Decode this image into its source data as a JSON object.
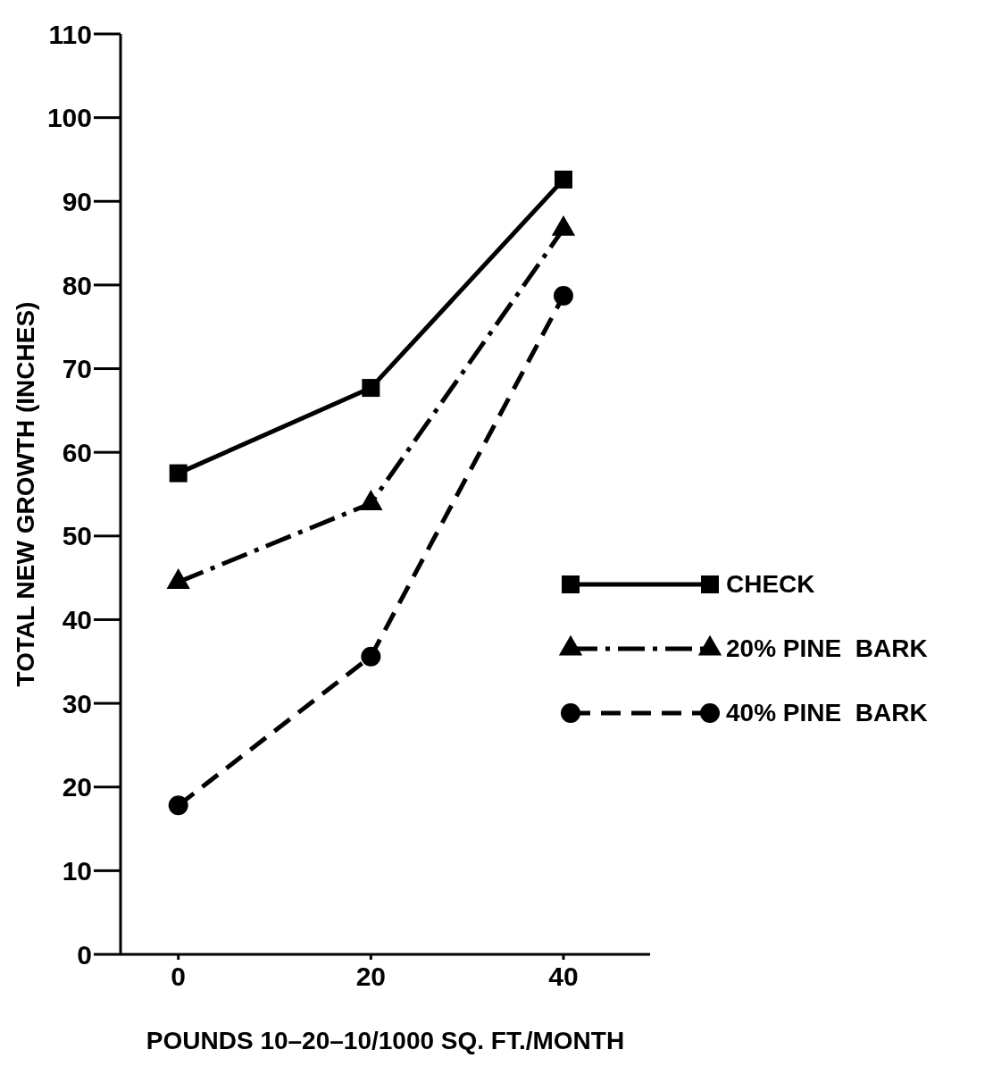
{
  "chart_data": {
    "type": "line",
    "xlabel": "POUNDS 10–20–10/1000 SQ. FT./MONTH",
    "ylabel": "TOTAL NEW GROWTH (INCHES)",
    "x": [
      0,
      20,
      40
    ],
    "xlim": [
      -6,
      49
    ],
    "xticks": [
      0,
      20,
      40
    ],
    "ylim": [
      0,
      110
    ],
    "yticks": [
      0,
      10,
      20,
      30,
      40,
      50,
      60,
      70,
      80,
      90,
      100,
      110
    ],
    "grid": false,
    "legend": "right",
    "series": [
      {
        "name": "CHECK",
        "color": "#000000",
        "values": [
          57.5,
          67.7,
          92.6
        ],
        "marker": "square",
        "line_style": "solid"
      },
      {
        "name": "20% PINE  BARK",
        "color": "#000000",
        "values": [
          44.5,
          53.9,
          86.7
        ],
        "marker": "triangle",
        "line_style": "dashdot"
      },
      {
        "name": "40% PINE  BARK",
        "color": "#000000",
        "values": [
          17.8,
          35.6,
          78.7
        ],
        "marker": "circle",
        "line_style": "dashed"
      }
    ]
  }
}
